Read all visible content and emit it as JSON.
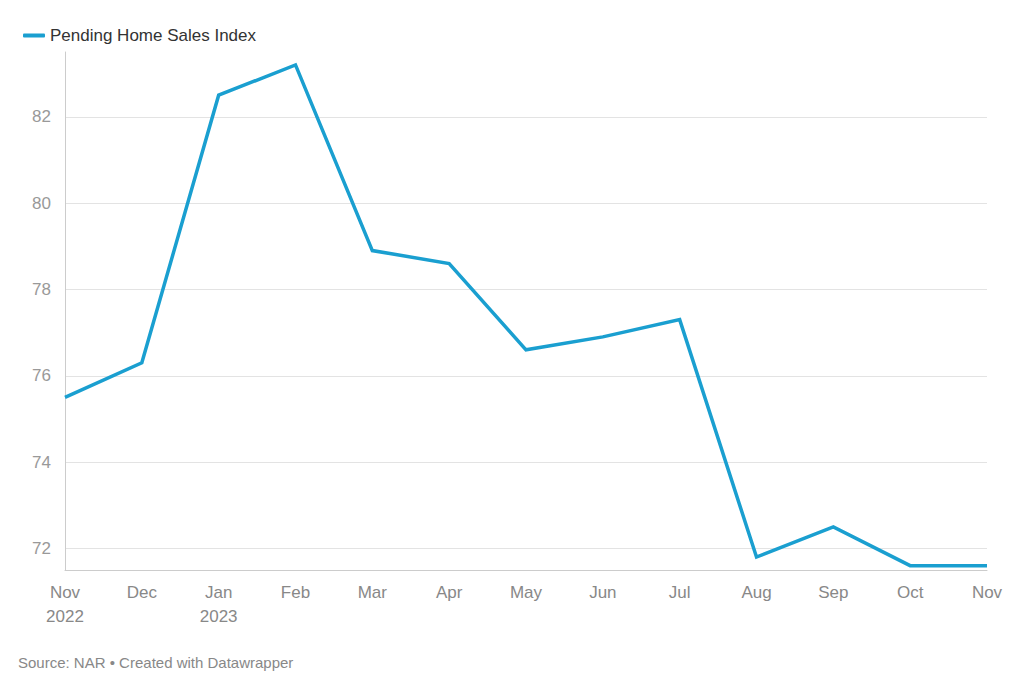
{
  "chart_data": {
    "type": "line",
    "categories": [
      "Nov\n2022",
      "Dec",
      "Jan\n2023",
      "Feb",
      "Mar",
      "Apr",
      "May",
      "Jun",
      "Jul",
      "Aug",
      "Sep",
      "Oct",
      "Nov"
    ],
    "series": [
      {
        "name": "Pending Home Sales Index",
        "color": "#1a9fd0",
        "values": [
          75.5,
          76.3,
          82.5,
          83.2,
          78.9,
          78.6,
          76.6,
          76.9,
          77.3,
          71.8,
          72.5,
          71.6,
          71.6
        ]
      }
    ],
    "ylim": [
      71.5,
      83.5
    ],
    "yticks": [
      72,
      74,
      76,
      78,
      80,
      82
    ],
    "grid": true,
    "legend": "top-left",
    "source": "Source: NAR • Created with Datawrapper"
  }
}
